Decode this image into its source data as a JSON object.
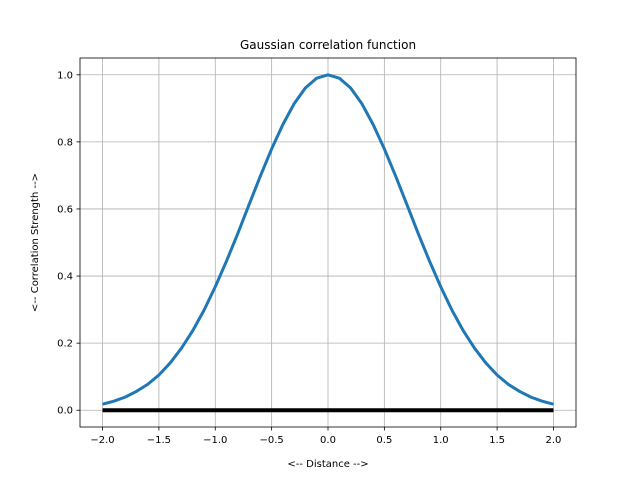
{
  "chart_data": {
    "type": "line",
    "title": "Gaussian correlation function",
    "xlabel": "<-- Distance -->",
    "ylabel": "<-- Correlation Strength -->",
    "xlim": [
      -2.2,
      2.2
    ],
    "ylim": [
      -0.05,
      1.05
    ],
    "grid": true,
    "xticks": [
      -2.0,
      -1.5,
      -1.0,
      -0.5,
      0.0,
      0.5,
      1.0,
      1.5,
      2.0
    ],
    "xtick_labels": [
      "−2.0",
      "−1.5",
      "−1.0",
      "−0.5",
      "0.0",
      "0.5",
      "1.0",
      "1.5",
      "2.0"
    ],
    "yticks": [
      0.0,
      0.2,
      0.4,
      0.6,
      0.8,
      1.0
    ],
    "ytick_labels": [
      "0.0",
      "0.2",
      "0.4",
      "0.6",
      "0.8",
      "1.0"
    ],
    "series": [
      {
        "color": "#1f77b4",
        "x": [
          -2.0,
          -1.9,
          -1.8,
          -1.7,
          -1.6,
          -1.5,
          -1.4,
          -1.3,
          -1.2,
          -1.1,
          -1.0,
          -0.9,
          -0.8,
          -0.7,
          -0.6,
          -0.5,
          -0.4,
          -0.3,
          -0.2,
          -0.1,
          0.0,
          0.1,
          0.2,
          0.3,
          0.4,
          0.5,
          0.6,
          0.7,
          0.8,
          0.9,
          1.0,
          1.1,
          1.2,
          1.3,
          1.4,
          1.5,
          1.6,
          1.7,
          1.8,
          1.9,
          2.0
        ],
        "y": [
          0.018,
          0.027,
          0.039,
          0.056,
          0.077,
          0.105,
          0.141,
          0.185,
          0.237,
          0.298,
          0.368,
          0.445,
          0.527,
          0.613,
          0.698,
          0.779,
          0.852,
          0.914,
          0.961,
          0.99,
          1.0,
          0.99,
          0.961,
          0.914,
          0.852,
          0.779,
          0.698,
          0.613,
          0.527,
          0.445,
          0.368,
          0.298,
          0.237,
          0.185,
          0.141,
          0.105,
          0.077,
          0.056,
          0.039,
          0.027,
          0.018
        ]
      },
      {
        "color": "#000000",
        "x": [
          -2.0,
          2.0
        ],
        "y": [
          0.0,
          0.0
        ]
      }
    ],
    "colors": {
      "grid": "#b0b0b0",
      "axes": "#000000",
      "background": "#ffffff"
    }
  }
}
